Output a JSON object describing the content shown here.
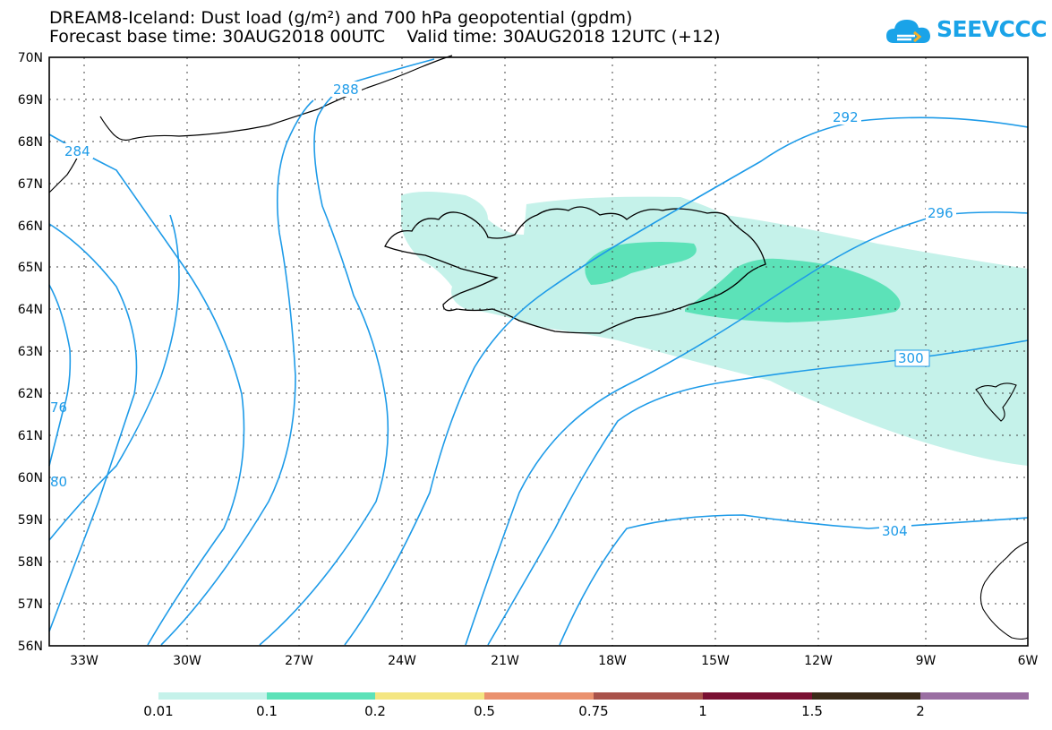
{
  "title": {
    "line1": "DREAM8-Iceland: Dust load (g/m²) and 700 hPa geopotential (gpdm)",
    "line2_base": "Forecast base time: 30AUG2018 00UTC",
    "line2_valid": "Valid time: 30AUG2018 12UTC (+12)"
  },
  "logo": {
    "text": "SEEVCCC",
    "icon": "cloud-icon",
    "color": "#1aa3e8"
  },
  "map": {
    "lat_labels": [
      "70N",
      "69N",
      "68N",
      "67N",
      "66N",
      "65N",
      "64N",
      "63N",
      "62N",
      "61N",
      "60N",
      "59N",
      "58N",
      "57N",
      "56N"
    ],
    "lon_labels": [
      "33W",
      "30W",
      "27W",
      "24W",
      "21W",
      "18W",
      "15W",
      "12W",
      "9W",
      "6W"
    ],
    "contour_labels": [
      "288",
      "292",
      "296",
      "300",
      "304",
      "284",
      "76",
      "80"
    ],
    "contour_color": "#1e9be8"
  },
  "colorbar": {
    "labels": [
      "0.01",
      "0.1",
      "0.2",
      "0.5",
      "0.75",
      "1",
      "1.5",
      "2"
    ],
    "colors": [
      "#c5f2ea",
      "#5ce2b8",
      "#f4e682",
      "#ea916e",
      "#a9524a",
      "#7a1032",
      "#3a2a18",
      "#9a6ea2"
    ]
  }
}
